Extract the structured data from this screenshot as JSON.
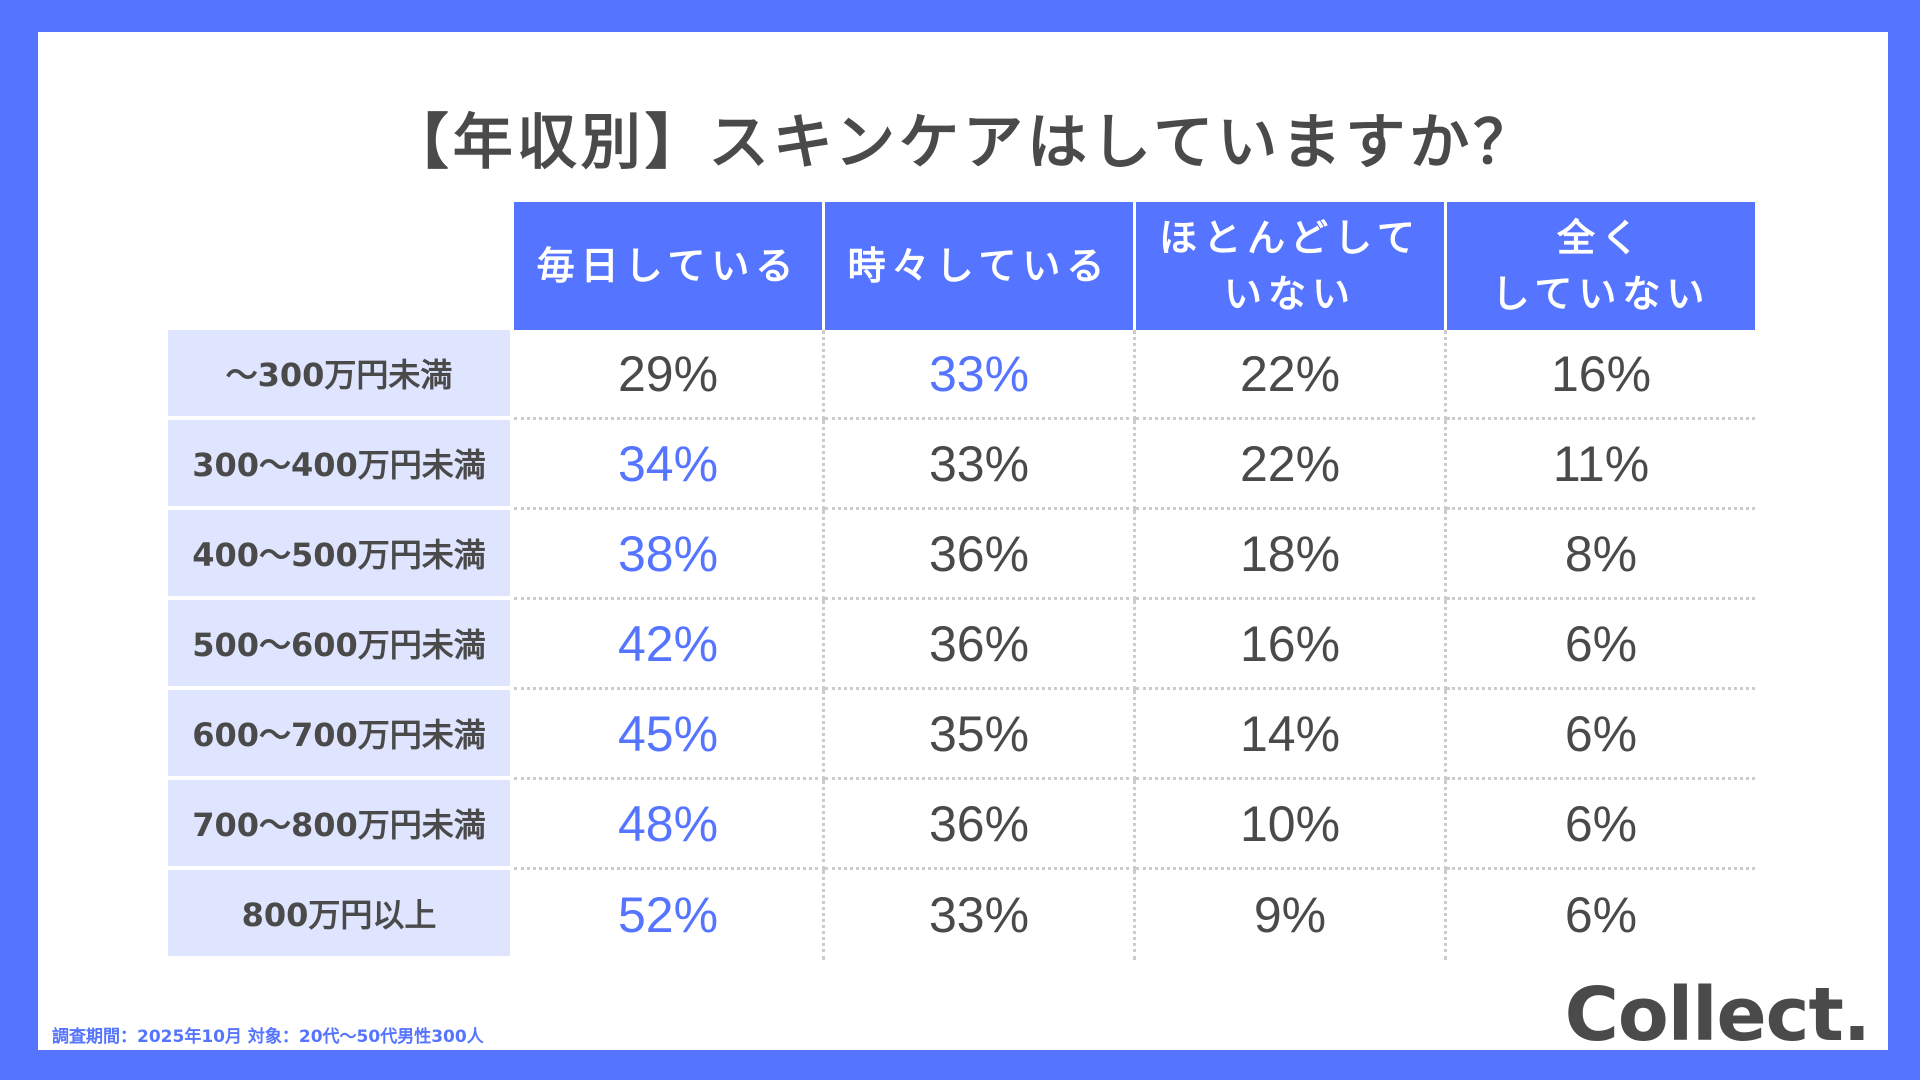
{
  "title": "【年収別】スキンケアはしていますか？",
  "chart_data": {
    "type": "table",
    "columns": [
      "毎日している",
      "時々している",
      "ほとんどして\nいない",
      "全く\nしていない"
    ],
    "rows": [
      {
        "label": "〜300万円未満",
        "values": [
          "29%",
          "33%",
          "22%",
          "16%"
        ],
        "highlight": 1
      },
      {
        "label": "300〜400万円未満",
        "values": [
          "34%",
          "33%",
          "22%",
          "11%"
        ],
        "highlight": 0
      },
      {
        "label": "400〜500万円未満",
        "values": [
          "38%",
          "36%",
          "18%",
          "8%"
        ],
        "highlight": 0
      },
      {
        "label": "500〜600万円未満",
        "values": [
          "42%",
          "36%",
          "16%",
          "6%"
        ],
        "highlight": 0
      },
      {
        "label": "600〜700万円未満",
        "values": [
          "45%",
          "35%",
          "14%",
          "6%"
        ],
        "highlight": 0
      },
      {
        "label": "700〜800万円未満",
        "values": [
          "48%",
          "36%",
          "10%",
          "6%"
        ],
        "highlight": 0
      },
      {
        "label": "800万円以上",
        "values": [
          "52%",
          "33%",
          "9%",
          "6%"
        ],
        "highlight": 0
      }
    ]
  },
  "colors": {
    "accent": "#5574FF",
    "row_header_bg": "#DFE4FF",
    "text": "#4A4A4A"
  },
  "footer": {
    "note": "調査期間：2025年10月  対象：20代〜50代男性300人",
    "logo": "Collect."
  }
}
